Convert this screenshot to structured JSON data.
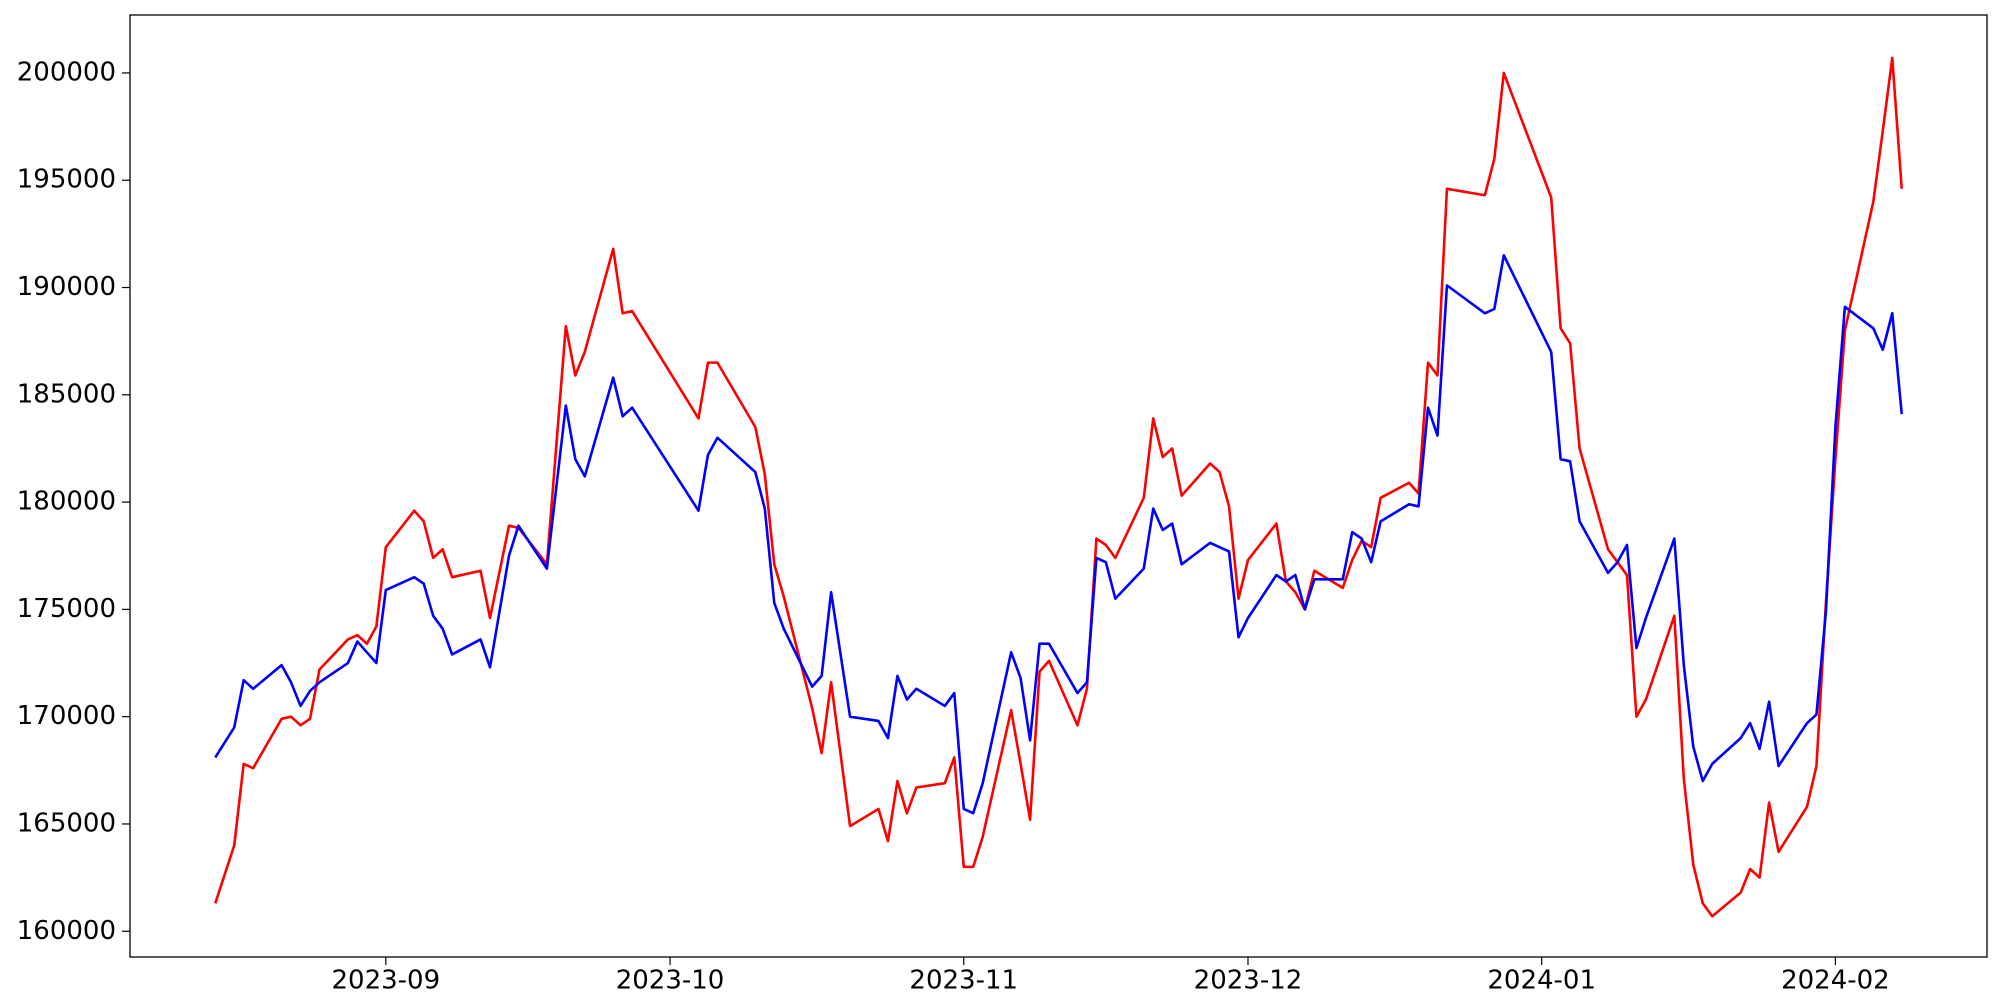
{
  "chart_data": {
    "type": "line",
    "x": [
      "2023-08-14",
      "2023-08-16",
      "2023-08-17",
      "2023-08-18",
      "2023-08-21",
      "2023-08-22",
      "2023-08-23",
      "2023-08-24",
      "2023-08-25",
      "2023-08-28",
      "2023-08-29",
      "2023-08-30",
      "2023-08-31",
      "2023-09-01",
      "2023-09-04",
      "2023-09-05",
      "2023-09-06",
      "2023-09-07",
      "2023-09-08",
      "2023-09-11",
      "2023-09-12",
      "2023-09-14",
      "2023-09-15",
      "2023-09-18",
      "2023-09-20",
      "2023-09-21",
      "2023-09-22",
      "2023-09-25",
      "2023-09-26",
      "2023-09-27",
      "2023-10-04",
      "2023-10-05",
      "2023-10-06",
      "2023-10-10",
      "2023-10-11",
      "2023-10-12",
      "2023-10-13",
      "2023-10-16",
      "2023-10-17",
      "2023-10-18",
      "2023-10-20",
      "2023-10-23",
      "2023-10-24",
      "2023-10-25",
      "2023-10-26",
      "2023-10-27",
      "2023-10-30",
      "2023-10-31",
      "2023-11-01",
      "2023-11-02",
      "2023-11-03",
      "2023-11-06",
      "2023-11-07",
      "2023-11-08",
      "2023-11-09",
      "2023-11-10",
      "2023-11-13",
      "2023-11-14",
      "2023-11-15",
      "2023-11-16",
      "2023-11-17",
      "2023-11-20",
      "2023-11-21",
      "2023-11-22",
      "2023-11-23",
      "2023-11-24",
      "2023-11-27",
      "2023-11-28",
      "2023-11-29",
      "2023-11-30",
      "2023-12-01",
      "2023-12-04",
      "2023-12-05",
      "2023-12-06",
      "2023-12-07",
      "2023-12-08",
      "2023-12-11",
      "2023-12-12",
      "2023-12-13",
      "2023-12-14",
      "2023-12-15",
      "2023-12-18",
      "2023-12-19",
      "2023-12-20",
      "2023-12-21",
      "2023-12-22",
      "2023-12-26",
      "2023-12-27",
      "2023-12-28",
      "2024-01-02",
      "2024-01-03",
      "2024-01-04",
      "2024-01-05",
      "2024-01-08",
      "2024-01-09",
      "2024-01-10",
      "2024-01-11",
      "2024-01-12",
      "2024-01-15",
      "2024-01-16",
      "2024-01-17",
      "2024-01-18",
      "2024-01-19",
      "2024-01-22",
      "2024-01-23",
      "2024-01-24",
      "2024-01-25",
      "2024-01-26",
      "2024-01-29",
      "2024-01-30",
      "2024-01-31",
      "2024-02-01",
      "2024-02-02",
      "2024-02-05",
      "2024-02-06",
      "2024-02-07",
      "2024-02-08"
    ],
    "series": [
      {
        "color": "#ff0000",
        "values": [
          161300,
          164000,
          167800,
          167600,
          169900,
          170000,
          169600,
          169900,
          172200,
          173600,
          173800,
          173400,
          174200,
          177900,
          179600,
          179100,
          177400,
          177800,
          176500,
          176800,
          174600,
          178900,
          178800,
          177100,
          188200,
          185900,
          187000,
          191800,
          188800,
          188900,
          183900,
          186500,
          186500,
          183500,
          181300,
          177100,
          175600,
          170400,
          168300,
          171600,
          164900,
          165700,
          164200,
          167000,
          165500,
          166700,
          166900,
          168100,
          163000,
          163000,
          164400,
          170300,
          167800,
          165200,
          172100,
          172600,
          169600,
          171300,
          178300,
          178000,
          177400,
          180200,
          183900,
          182100,
          182500,
          180300,
          181800,
          181400,
          179800,
          175500,
          177300,
          179000,
          176300,
          175800,
          175000,
          176800,
          176000,
          177300,
          178200,
          177900,
          180200,
          180900,
          180400,
          186500,
          185900,
          194600,
          194300,
          196000,
          200000,
          194200,
          188100,
          187400,
          182500,
          177800,
          177200,
          176600,
          170000,
          170800,
          174700,
          167100,
          163100,
          161300,
          160700,
          161800,
          162900,
          162500,
          166000,
          163700,
          165800,
          167700,
          175300,
          182000,
          188000,
          194000,
          197300,
          200700,
          194600
        ]
      },
      {
        "color": "#0000ff",
        "values": [
          168100,
          169500,
          171700,
          171300,
          172400,
          171600,
          170500,
          171200,
          171600,
          172500,
          173500,
          173000,
          172500,
          175900,
          176500,
          176200,
          174700,
          174100,
          172900,
          173600,
          172300,
          177500,
          178900,
          176900,
          184500,
          182000,
          181200,
          185800,
          184000,
          184400,
          179600,
          182200,
          183000,
          181400,
          179700,
          175300,
          174100,
          171400,
          171900,
          175800,
          170000,
          169800,
          169000,
          171900,
          170800,
          171300,
          170500,
          171100,
          165700,
          165500,
          166900,
          173000,
          171800,
          168900,
          173400,
          173400,
          171100,
          171600,
          177400,
          177200,
          175500,
          176900,
          179700,
          178700,
          179000,
          177100,
          178100,
          177900,
          177700,
          173700,
          174600,
          176600,
          176300,
          176600,
          175000,
          176400,
          176400,
          178600,
          178300,
          177200,
          179100,
          179900,
          179800,
          184400,
          183100,
          190100,
          188800,
          189000,
          191500,
          187000,
          182000,
          181900,
          179100,
          176700,
          177200,
          178000,
          173200,
          174600,
          178300,
          172400,
          168600,
          167000,
          167800,
          169000,
          169700,
          168500,
          170700,
          167700,
          169700,
          170100,
          174900,
          183500,
          189100,
          188100,
          187100,
          188800,
          184100
        ]
      }
    ],
    "xlim": [
      "2023-08-05",
      "2024-02-17"
    ],
    "xticks": [
      {
        "value": "2023-09-01",
        "label": "2023-09"
      },
      {
        "value": "2023-10-01",
        "label": "2023-10"
      },
      {
        "value": "2023-11-01",
        "label": "2023-11"
      },
      {
        "value": "2023-12-01",
        "label": "2023-12"
      },
      {
        "value": "2024-01-01",
        "label": "2024-01"
      },
      {
        "value": "2024-02-01",
        "label": "2024-02"
      }
    ],
    "ylim": [
      158800,
      202700
    ],
    "yticks": [
      160000,
      165000,
      170000,
      175000,
      180000,
      185000,
      190000,
      195000,
      200000
    ],
    "grid": false
  }
}
